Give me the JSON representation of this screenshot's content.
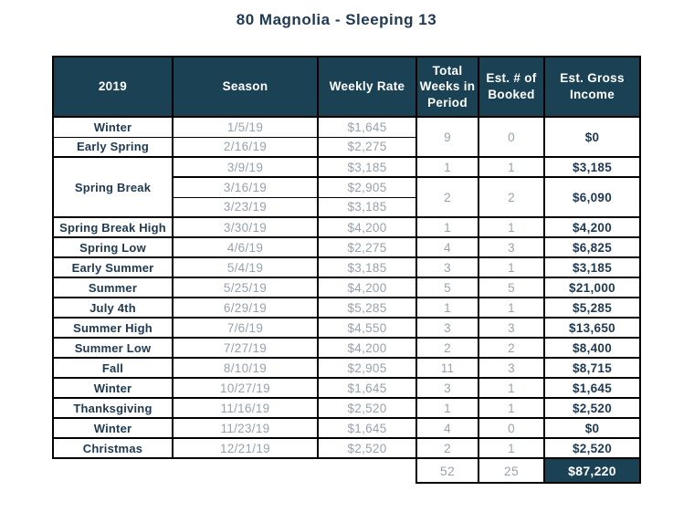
{
  "title": "80 Magnolia - Sleeping 13",
  "colors": {
    "header_bg": "#1B4254",
    "dark_text": "#203A52",
    "muted_text": "#98A2AE",
    "total_bg": "#1B4254",
    "border": "#000000",
    "page_bg": "#FFFFFF"
  },
  "table": {
    "columns": [
      "2019",
      "Season",
      "Weekly Rate",
      "Total Weeks in Period",
      "Est. # of Booked",
      "Est. Gross Income"
    ],
    "rows": [
      {
        "thin_below": true,
        "cells": [
          {
            "text": "Winter",
            "type": "season"
          },
          {
            "text": "1/5/19",
            "type": "muted"
          },
          {
            "text": "$1,645",
            "type": "muted"
          },
          {
            "text": "9",
            "type": "muted",
            "rowspan": 2
          },
          {
            "text": "0",
            "type": "muted",
            "rowspan": 2
          },
          {
            "text": "$0",
            "type": "income",
            "rowspan": 2
          }
        ]
      },
      {
        "cells": [
          {
            "text": "Early Spring",
            "type": "season"
          },
          {
            "text": "2/16/19",
            "type": "muted"
          },
          {
            "text": "$2,275",
            "type": "muted"
          }
        ]
      },
      {
        "cells": [
          {
            "text": "Spring Break",
            "type": "season",
            "rowspan": 3
          },
          {
            "text": "3/9/19",
            "type": "muted"
          },
          {
            "text": "$3,185",
            "type": "muted"
          },
          {
            "text": "1",
            "type": "muted"
          },
          {
            "text": "1",
            "type": "muted"
          },
          {
            "text": "$3,185",
            "type": "income"
          }
        ]
      },
      {
        "thin_below": true,
        "cells": [
          {
            "text": "3/16/19",
            "type": "muted"
          },
          {
            "text": "$2,905",
            "type": "muted"
          },
          {
            "text": "2",
            "type": "muted",
            "rowspan": 2
          },
          {
            "text": "2",
            "type": "muted",
            "rowspan": 2
          },
          {
            "text": "$6,090",
            "type": "income",
            "rowspan": 2
          }
        ]
      },
      {
        "cells": [
          {
            "text": "3/23/19",
            "type": "muted"
          },
          {
            "text": "$3,185",
            "type": "muted"
          }
        ]
      },
      {
        "cells": [
          {
            "text": "Spring Break High",
            "type": "season"
          },
          {
            "text": "3/30/19",
            "type": "muted"
          },
          {
            "text": "$4,200",
            "type": "muted"
          },
          {
            "text": "1",
            "type": "muted"
          },
          {
            "text": "1",
            "type": "muted"
          },
          {
            "text": "$4,200",
            "type": "income"
          }
        ]
      },
      {
        "cells": [
          {
            "text": "Spring Low",
            "type": "season"
          },
          {
            "text": "4/6/19",
            "type": "muted"
          },
          {
            "text": "$2,275",
            "type": "muted"
          },
          {
            "text": "4",
            "type": "muted"
          },
          {
            "text": "3",
            "type": "muted"
          },
          {
            "text": "$6,825",
            "type": "income"
          }
        ]
      },
      {
        "cells": [
          {
            "text": "Early Summer",
            "type": "season"
          },
          {
            "text": "5/4/19",
            "type": "muted"
          },
          {
            "text": "$3,185",
            "type": "muted"
          },
          {
            "text": "3",
            "type": "muted"
          },
          {
            "text": "1",
            "type": "muted"
          },
          {
            "text": "$3,185",
            "type": "income"
          }
        ]
      },
      {
        "cells": [
          {
            "text": "Summer",
            "type": "season"
          },
          {
            "text": "5/25/19",
            "type": "muted"
          },
          {
            "text": "$4,200",
            "type": "muted"
          },
          {
            "text": "5",
            "type": "muted"
          },
          {
            "text": "5",
            "type": "muted"
          },
          {
            "text": "$21,000",
            "type": "income"
          }
        ]
      },
      {
        "cells": [
          {
            "text": "July 4th",
            "type": "season"
          },
          {
            "text": "6/29/19",
            "type": "muted"
          },
          {
            "text": "$5,285",
            "type": "muted"
          },
          {
            "text": "1",
            "type": "muted"
          },
          {
            "text": "1",
            "type": "muted"
          },
          {
            "text": "$5,285",
            "type": "income"
          }
        ]
      },
      {
        "cells": [
          {
            "text": "Summer High",
            "type": "season"
          },
          {
            "text": "7/6/19",
            "type": "muted"
          },
          {
            "text": "$4,550",
            "type": "muted"
          },
          {
            "text": "3",
            "type": "muted"
          },
          {
            "text": "3",
            "type": "muted"
          },
          {
            "text": "$13,650",
            "type": "income"
          }
        ]
      },
      {
        "cells": [
          {
            "text": "Summer Low",
            "type": "season"
          },
          {
            "text": "7/27/19",
            "type": "muted"
          },
          {
            "text": "$4,200",
            "type": "muted"
          },
          {
            "text": "2",
            "type": "muted"
          },
          {
            "text": "2",
            "type": "muted"
          },
          {
            "text": "$8,400",
            "type": "income"
          }
        ]
      },
      {
        "cells": [
          {
            "text": "Fall",
            "type": "season"
          },
          {
            "text": "8/10/19",
            "type": "muted"
          },
          {
            "text": "$2,905",
            "type": "muted"
          },
          {
            "text": "11",
            "type": "muted"
          },
          {
            "text": "3",
            "type": "muted"
          },
          {
            "text": "$8,715",
            "type": "income"
          }
        ]
      },
      {
        "cells": [
          {
            "text": "Winter",
            "type": "season"
          },
          {
            "text": "10/27/19",
            "type": "muted"
          },
          {
            "text": "$1,645",
            "type": "muted"
          },
          {
            "text": "3",
            "type": "muted"
          },
          {
            "text": "1",
            "type": "muted"
          },
          {
            "text": "$1,645",
            "type": "income"
          }
        ]
      },
      {
        "cells": [
          {
            "text": "Thanksgiving",
            "type": "season"
          },
          {
            "text": "11/16/19",
            "type": "muted"
          },
          {
            "text": "$2,520",
            "type": "muted"
          },
          {
            "text": "1",
            "type": "muted"
          },
          {
            "text": "1",
            "type": "muted"
          },
          {
            "text": "$2,520",
            "type": "income"
          }
        ]
      },
      {
        "cells": [
          {
            "text": "Winter",
            "type": "season"
          },
          {
            "text": "11/23/19",
            "type": "muted"
          },
          {
            "text": "$1,645",
            "type": "muted"
          },
          {
            "text": "4",
            "type": "muted"
          },
          {
            "text": "0",
            "type": "muted"
          },
          {
            "text": "$0",
            "type": "income"
          }
        ]
      },
      {
        "cells": [
          {
            "text": "Christmas",
            "type": "season"
          },
          {
            "text": "12/21/19",
            "type": "muted"
          },
          {
            "text": "$2,520",
            "type": "muted"
          },
          {
            "text": "2",
            "type": "muted"
          },
          {
            "text": "1",
            "type": "muted"
          },
          {
            "text": "$2,520",
            "type": "income"
          }
        ]
      }
    ],
    "totals": {
      "weeks": "52",
      "booked": "25",
      "income": "$87,220"
    }
  }
}
